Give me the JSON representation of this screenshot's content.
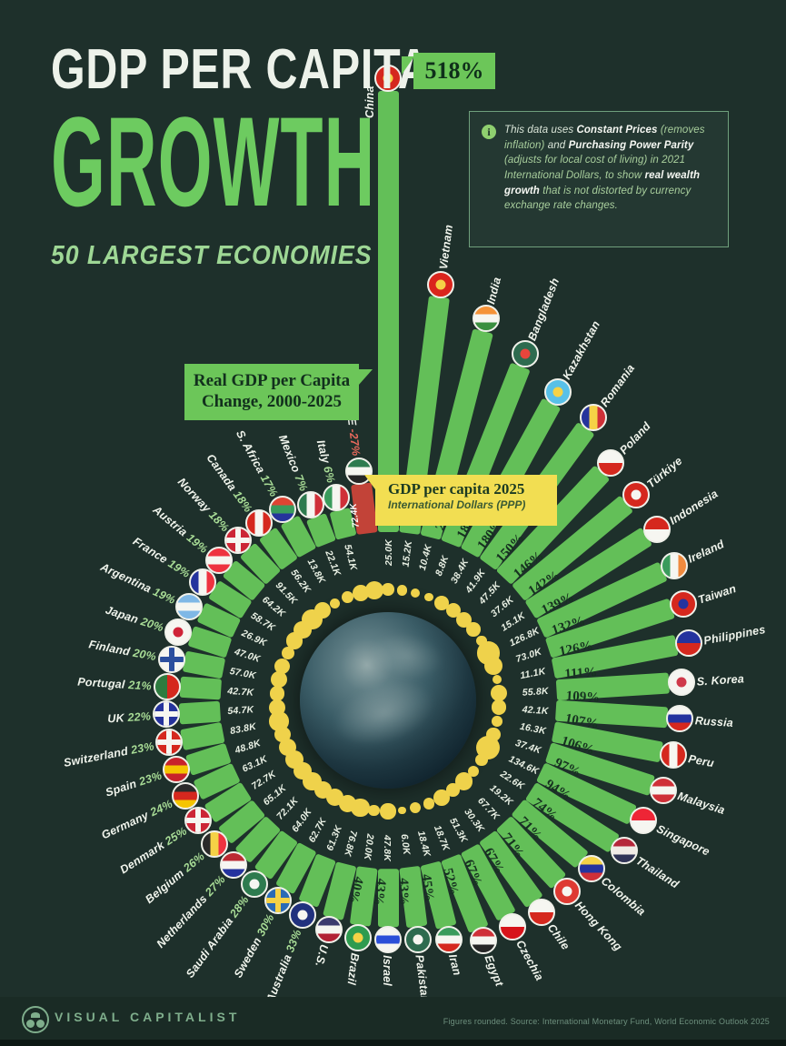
{
  "header": {
    "title_line1": "GDP PER CAPITA",
    "title_line2": "GROWTH",
    "subtitle": "50 LARGEST ECONOMIES"
  },
  "annotations": {
    "change_label": "Real GDP per Capita Change, 2000-2025",
    "gdp_box_line1": "GDP per capita 2025",
    "gdp_box_line2": "International Dollars (PPP)",
    "info_segments": [
      {
        "t": "This data uses ",
        "s": "n"
      },
      {
        "t": "Constant Prices",
        "s": "b"
      },
      {
        "t": " (removes inflation) ",
        "s": "g"
      },
      {
        "t": "and ",
        "s": "n"
      },
      {
        "t": "Purchasing Power Parity",
        "s": "b"
      },
      {
        "t": " (adjusts for local cost of living) in 2021 International Dollars, to show ",
        "s": "g"
      },
      {
        "t": "real wealth growth",
        "s": "b"
      },
      {
        "t": " that is not distorted by currency exchange rate changes.",
        "s": "g"
      }
    ]
  },
  "footer": {
    "brand": "VISUAL CAPITALIST",
    "source": "Figures rounded. Source: International Monetary Fund, World Economic Outlook 2025"
  },
  "colors": {
    "background": "#1e302b",
    "bar_green": "#63bf58",
    "bar_red": "#c24338",
    "dot_yellow": "#efd24b",
    "accent_green": "#6dcb60",
    "label_green": "#a8dc96",
    "yellow_box": "#f2de52"
  },
  "chart_data": {
    "type": "radial-bar",
    "title": "GDP per Capita Growth, 50 Largest Economies",
    "bar_metric": "Real GDP per capita change 2000-2025 (%)",
    "value_metric": "GDP per capita 2025, International Dollars (PPP)",
    "pct_range": [
      -27,
      518
    ],
    "countries": [
      {
        "name": "China",
        "pct": 518,
        "pct_label": "518%",
        "value_label": "25.0K",
        "flag": {
          "type": "dot",
          "colors": [
            "#d5281e",
            "#f5d246"
          ]
        }
      },
      {
        "name": "Vietnam",
        "pct": 266,
        "pct_label": "266%",
        "value_label": "15.2K",
        "flag": {
          "type": "dot",
          "colors": [
            "#da251d",
            "#f5d246"
          ]
        }
      },
      {
        "name": "India",
        "pct": 235,
        "pct_label": "235%",
        "value_label": "10.4K",
        "flag": {
          "type": "h",
          "colors": [
            "#f59338",
            "#f6f6f1",
            "#3a8f3f"
          ]
        }
      },
      {
        "name": "Bangladesh",
        "pct": 208,
        "pct_label": "208%",
        "value_label": "8.8K",
        "flag": {
          "type": "dot",
          "colors": [
            "#2e6b4f",
            "#e8453c"
          ]
        }
      },
      {
        "name": "Kazakhstan",
        "pct": 183,
        "pct_label": "183%",
        "value_label": "38.4K",
        "flag": {
          "type": "dot",
          "colors": [
            "#58c0e8",
            "#f5d246"
          ]
        }
      },
      {
        "name": "Romania",
        "pct": 180,
        "pct_label": "180%",
        "value_label": "41.9K",
        "flag": {
          "type": "v",
          "colors": [
            "#25339c",
            "#f5d246",
            "#cf3038"
          ]
        }
      },
      {
        "name": "Poland",
        "pct": 150,
        "pct_label": "150%",
        "value_label": "47.5K",
        "flag": {
          "type": "h",
          "colors": [
            "#f6f6f1",
            "#d5281e"
          ]
        }
      },
      {
        "name": "Türkiye",
        "pct": 146,
        "pct_label": "146%",
        "value_label": "37.6K",
        "flag": {
          "type": "dot",
          "colors": [
            "#d5281e",
            "#f6f6f1"
          ]
        }
      },
      {
        "name": "Indonesia",
        "pct": 142,
        "pct_label": "142%",
        "value_label": "15.1K",
        "flag": {
          "type": "h",
          "colors": [
            "#d5281e",
            "#f6f6f1"
          ]
        }
      },
      {
        "name": "Ireland",
        "pct": 139,
        "pct_label": "139%",
        "value_label": "126.8K",
        "flag": {
          "type": "v",
          "colors": [
            "#3a9b5c",
            "#f6f6f1",
            "#ef8a3e"
          ]
        }
      },
      {
        "name": "Taiwan",
        "pct": 132,
        "pct_label": "132%",
        "value_label": "73.0K",
        "flag": {
          "type": "dot",
          "colors": [
            "#d5281e",
            "#24339e"
          ]
        }
      },
      {
        "name": "Philippines",
        "pct": 126,
        "pct_label": "126%",
        "value_label": "11.1K",
        "flag": {
          "type": "h",
          "colors": [
            "#24339e",
            "#d5281e"
          ]
        }
      },
      {
        "name": "S. Korea",
        "pct": 111,
        "pct_label": "111%",
        "value_label": "55.8K",
        "flag": {
          "type": "dot",
          "colors": [
            "#f6f6f1",
            "#cf3a4a"
          ]
        }
      },
      {
        "name": "Russia",
        "pct": 109,
        "pct_label": "109%",
        "value_label": "42.1K",
        "flag": {
          "type": "h",
          "colors": [
            "#f6f6f1",
            "#24339e",
            "#d5281e"
          ]
        }
      },
      {
        "name": "Peru",
        "pct": 107,
        "pct_label": "107%",
        "value_label": "16.3K",
        "flag": {
          "type": "v",
          "colors": [
            "#d5281e",
            "#f6f6f1",
            "#d5281e"
          ]
        }
      },
      {
        "name": "Malaysia",
        "pct": 106,
        "pct_label": "106%",
        "value_label": "37.4K",
        "flag": {
          "type": "h",
          "colors": [
            "#cf3038",
            "#f6f6f1",
            "#cf3038"
          ]
        }
      },
      {
        "name": "Singapore",
        "pct": 97,
        "pct_label": "97%",
        "value_label": "134.6K",
        "flag": {
          "type": "h",
          "colors": [
            "#ee2536",
            "#f6f6f1"
          ]
        }
      },
      {
        "name": "Thailand",
        "pct": 94,
        "pct_label": "94%",
        "value_label": "22.6K",
        "flag": {
          "type": "h",
          "colors": [
            "#b5273b",
            "#f0ebe6",
            "#303457"
          ]
        }
      },
      {
        "name": "Colombia",
        "pct": 74,
        "pct_label": "74%",
        "value_label": "19.2K",
        "flag": {
          "type": "h",
          "colors": [
            "#f5d246",
            "#24339e",
            "#cf3038"
          ]
        }
      },
      {
        "name": "Hong Kong",
        "pct": 71,
        "pct_label": "71%",
        "value_label": "67.7K",
        "flag": {
          "type": "dot",
          "colors": [
            "#de3a32",
            "#f6f6f1"
          ]
        }
      },
      {
        "name": "Chile",
        "pct": 71,
        "pct_label": "71%",
        "value_label": "30.3K",
        "flag": {
          "type": "h",
          "colors": [
            "#f6f6f1",
            "#d5281e"
          ]
        }
      },
      {
        "name": "Czechia",
        "pct": 67,
        "pct_label": "67%",
        "value_label": "51.3K",
        "flag": {
          "type": "h",
          "colors": [
            "#f6f6f1",
            "#d7141a"
          ]
        }
      },
      {
        "name": "Egypt",
        "pct": 67,
        "pct_label": "67%",
        "value_label": "18.7K",
        "flag": {
          "type": "h",
          "colors": [
            "#cf3038",
            "#f6f6f1",
            "#262626"
          ]
        }
      },
      {
        "name": "Iran",
        "pct": 52,
        "pct_label": "52%",
        "value_label": "18.4K",
        "flag": {
          "type": "h",
          "colors": [
            "#3a9b5c",
            "#f6f6f1",
            "#d5281e"
          ]
        }
      },
      {
        "name": "Pakistan",
        "pct": 45,
        "pct_label": "45%",
        "value_label": "6.0K",
        "flag": {
          "type": "dot",
          "colors": [
            "#2e6b4f",
            "#f6f6f1"
          ]
        }
      },
      {
        "name": "Israel",
        "pct": 43,
        "pct_label": "43%",
        "value_label": "47.8K",
        "flag": {
          "type": "h",
          "colors": [
            "#f6f6f1",
            "#2b4fd8",
            "#f6f6f1"
          ]
        }
      },
      {
        "name": "Brazil",
        "pct": 43,
        "pct_label": "43%",
        "value_label": "20.0K",
        "flag": {
          "type": "dot",
          "colors": [
            "#2e9b4f",
            "#f5d246"
          ]
        }
      },
      {
        "name": "U.S.",
        "pct": 40,
        "pct_label": "40%",
        "value_label": "76.8K",
        "flag": {
          "type": "h",
          "colors": [
            "#3c3b6e",
            "#f6f6f1",
            "#b22234"
          ]
        }
      },
      {
        "name": "Australia",
        "pct": 33,
        "pct_label": "33%",
        "value_label": "61.3K",
        "flag": {
          "type": "dot",
          "colors": [
            "#21317e",
            "#f6f6f1"
          ]
        }
      },
      {
        "name": "Sweden",
        "pct": 30,
        "pct_label": "30%",
        "value_label": "62.7K",
        "flag": {
          "type": "cross",
          "colors": [
            "#2b6bb5",
            "#f5d246"
          ]
        }
      },
      {
        "name": "Saudi Arabia",
        "pct": 28,
        "pct_label": "28%",
        "value_label": "64.0K",
        "flag": {
          "type": "dot",
          "colors": [
            "#2e7b4f",
            "#f6f6f1"
          ]
        }
      },
      {
        "name": "Netherlands",
        "pct": 27,
        "pct_label": "27%",
        "value_label": "72.1K",
        "flag": {
          "type": "h",
          "colors": [
            "#bb2a33",
            "#f6f6f1",
            "#24339e"
          ]
        }
      },
      {
        "name": "Belgium",
        "pct": 26,
        "pct_label": "26%",
        "value_label": "65.1K",
        "flag": {
          "type": "v",
          "colors": [
            "#2b2b2b",
            "#f5d246",
            "#ee3340"
          ]
        }
      },
      {
        "name": "Denmark",
        "pct": 25,
        "pct_label": "25%",
        "value_label": "72.7K",
        "flag": {
          "type": "cross",
          "colors": [
            "#cc2636",
            "#f6f6f1"
          ]
        }
      },
      {
        "name": "Germany",
        "pct": 24,
        "pct_label": "24%",
        "value_label": "63.1K",
        "flag": {
          "type": "h",
          "colors": [
            "#2b2b2b",
            "#d5281e",
            "#f5c400"
          ]
        }
      },
      {
        "name": "Spain",
        "pct": 23,
        "pct_label": "23%",
        "value_label": "48.8K",
        "flag": {
          "type": "h",
          "colors": [
            "#c8222b",
            "#f5c400",
            "#c8222b"
          ]
        }
      },
      {
        "name": "Switzerland",
        "pct": 23,
        "pct_label": "23%",
        "value_label": "83.8K",
        "flag": {
          "type": "cross",
          "colors": [
            "#d5281e",
            "#f6f6f1"
          ]
        }
      },
      {
        "name": "UK",
        "pct": 22,
        "pct_label": "22%",
        "value_label": "54.7K",
        "flag": {
          "type": "cross",
          "colors": [
            "#25339c",
            "#f6f6f1"
          ]
        }
      },
      {
        "name": "Portugal",
        "pct": 21,
        "pct_label": "21%",
        "value_label": "42.7K",
        "flag": {
          "type": "v",
          "colors": [
            "#2e7b3f",
            "#d5281e"
          ]
        }
      },
      {
        "name": "Finland",
        "pct": 20,
        "pct_label": "20%",
        "value_label": "57.0K",
        "flag": {
          "type": "cross",
          "colors": [
            "#f6f6f1",
            "#2b4f9e"
          ]
        }
      },
      {
        "name": "Japan",
        "pct": 20,
        "pct_label": "20%",
        "value_label": "47.0K",
        "flag": {
          "type": "dot",
          "colors": [
            "#f6f6f1",
            "#cf2438"
          ]
        }
      },
      {
        "name": "Argentina",
        "pct": 19,
        "pct_label": "19%",
        "value_label": "26.9K",
        "flag": {
          "type": "h",
          "colors": [
            "#7fb8e6",
            "#f6f6f1",
            "#7fb8e6"
          ]
        }
      },
      {
        "name": "France",
        "pct": 19,
        "pct_label": "19%",
        "value_label": "58.7K",
        "flag": {
          "type": "v",
          "colors": [
            "#24339e",
            "#f6f6f1",
            "#ee3340"
          ]
        }
      },
      {
        "name": "Austria",
        "pct": 19,
        "pct_label": "19%",
        "value_label": "64.2K",
        "flag": {
          "type": "h",
          "colors": [
            "#ee3340",
            "#f6f6f1",
            "#ee3340"
          ]
        }
      },
      {
        "name": "Norway",
        "pct": 18,
        "pct_label": "18%",
        "value_label": "91.5K",
        "flag": {
          "type": "cross",
          "colors": [
            "#cc2636",
            "#f6f6f1"
          ]
        }
      },
      {
        "name": "Canada",
        "pct": 18,
        "pct_label": "18%",
        "value_label": "56.2K",
        "flag": {
          "type": "v",
          "colors": [
            "#d5281e",
            "#f6f6f1",
            "#d5281e"
          ]
        }
      },
      {
        "name": "S. Africa",
        "pct": 17,
        "pct_label": "17%",
        "value_label": "13.8K",
        "flag": {
          "type": "h",
          "colors": [
            "#de4433",
            "#3a9b5c",
            "#25339c"
          ]
        }
      },
      {
        "name": "Mexico",
        "pct": 7,
        "pct_label": "7%",
        "value_label": "22.1K",
        "flag": {
          "type": "v",
          "colors": [
            "#2e7b4f",
            "#f6f6f1",
            "#cf3038"
          ]
        }
      },
      {
        "name": "Italy",
        "pct": 6,
        "pct_label": "6%",
        "value_label": "54.1K",
        "flag": {
          "type": "v",
          "colors": [
            "#3a9b5c",
            "#f6f6f1",
            "#cf3038"
          ]
        }
      },
      {
        "name": "UAE",
        "pct": -27,
        "pct_label": "-27%",
        "value_label": "72.4K",
        "flag": {
          "type": "h",
          "colors": [
            "#2e7b4f",
            "#f6f6f1",
            "#262626"
          ]
        }
      }
    ]
  }
}
